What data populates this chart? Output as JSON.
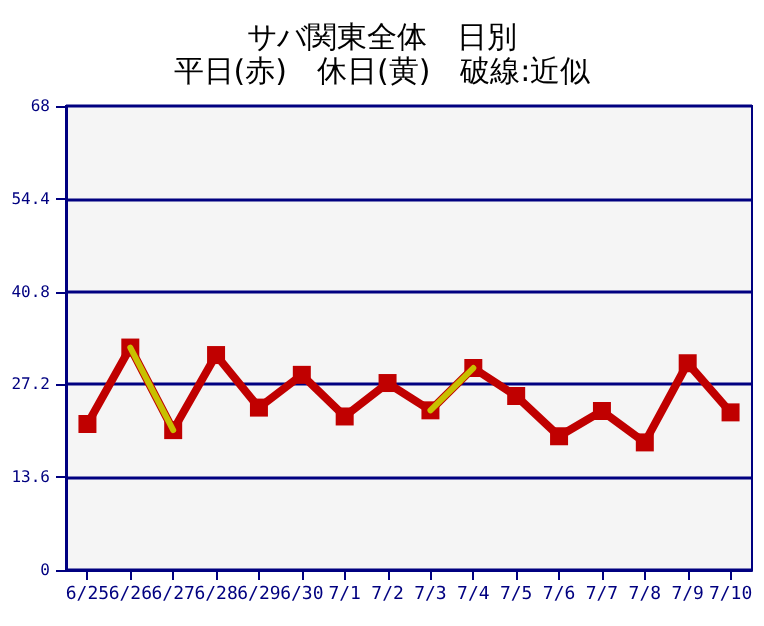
{
  "chart_data": {
    "type": "line",
    "title": "サバ関東全体　日別",
    "subtitle": "平日(赤)　休日(黄)　破線:近似",
    "categories": [
      "6/25",
      "6/26",
      "6/27",
      "6/28",
      "6/29",
      "6/30",
      "7/1",
      "7/2",
      "7/3",
      "7/4",
      "7/5",
      "7/6",
      "7/7",
      "7/8",
      "7/9",
      "7/10"
    ],
    "series": [
      {
        "color": "#c00000",
        "marker": "square",
        "values": [
          21.4,
          32.6,
          20.5,
          31.5,
          23.8,
          28.6,
          22.5,
          27.4,
          23.4,
          29.6,
          25.5,
          19.6,
          23.3,
          18.7,
          30.3,
          23.1
        ]
      },
      {
        "color": "#c8c000",
        "marker": "none",
        "values": [
          null,
          32.6,
          20.5,
          null,
          null,
          null,
          null,
          null,
          23.4,
          29.6,
          null,
          null,
          null,
          null,
          null,
          null
        ]
      }
    ],
    "ylim": [
      0,
      68
    ],
    "yticks": [
      0,
      13.6,
      27.2,
      40.8,
      54.4,
      68
    ],
    "grid": "y",
    "line_style": "solid"
  }
}
